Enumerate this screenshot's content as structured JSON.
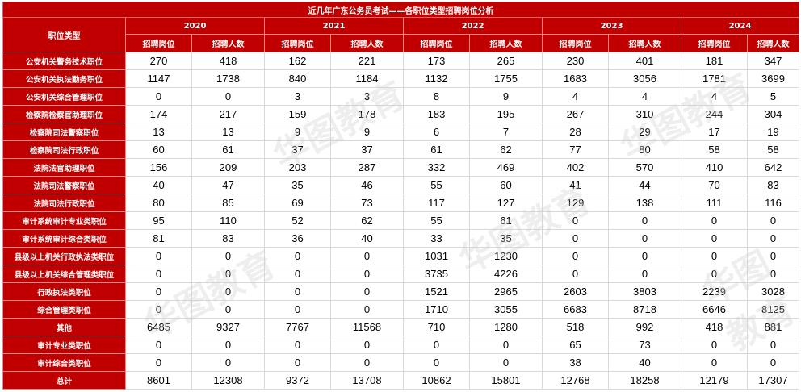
{
  "title": "近几年广东公务员考试——各职位类型招聘岗位分析",
  "header": {
    "position_type": "职位类型",
    "years": [
      "2020",
      "2021",
      "2022",
      "2023",
      "2024"
    ],
    "sub": [
      "招聘岗位",
      "招聘人数"
    ]
  },
  "rows": [
    {
      "label": "公安机关警务技术职位",
      "values": [
        270,
        418,
        162,
        221,
        173,
        265,
        230,
        401,
        181,
        347
      ]
    },
    {
      "label": "公安机关执法勤务职位",
      "values": [
        1147,
        1738,
        840,
        1184,
        1132,
        1755,
        1683,
        3056,
        1781,
        3699
      ]
    },
    {
      "label": "公安机关综合管理职位",
      "values": [
        0,
        0,
        3,
        3,
        8,
        9,
        4,
        4,
        4,
        5
      ]
    },
    {
      "label": "检察院检察官助理职位",
      "values": [
        174,
        217,
        159,
        178,
        183,
        195,
        267,
        310,
        244,
        304
      ]
    },
    {
      "label": "检察院司法警察职位",
      "values": [
        13,
        13,
        9,
        9,
        6,
        7,
        28,
        29,
        17,
        19
      ]
    },
    {
      "label": "检察院司法行政职位",
      "values": [
        60,
        61,
        37,
        37,
        61,
        62,
        77,
        80,
        58,
        58
      ]
    },
    {
      "label": "法院法官助理职位",
      "values": [
        156,
        209,
        203,
        287,
        332,
        469,
        402,
        570,
        410,
        642
      ]
    },
    {
      "label": "法院司法警察职位",
      "values": [
        40,
        47,
        35,
        46,
        55,
        60,
        41,
        44,
        70,
        83
      ]
    },
    {
      "label": "法院司法行政职位",
      "values": [
        80,
        85,
        69,
        73,
        117,
        127,
        129,
        138,
        111,
        116
      ]
    },
    {
      "label": "审计系统审计专业类职位",
      "values": [
        95,
        110,
        52,
        62,
        55,
        61,
        0,
        0,
        0,
        0
      ]
    },
    {
      "label": "审计系统审计综合类职位",
      "values": [
        81,
        83,
        36,
        40,
        33,
        35,
        0,
        0,
        0,
        0
      ]
    },
    {
      "label": "县级以上机关行政执法类职位",
      "values": [
        0,
        0,
        0,
        0,
        1031,
        1230,
        0,
        0,
        0,
        0
      ]
    },
    {
      "label": "县级以上机关综合管理类职位",
      "values": [
        0,
        0,
        0,
        0,
        3735,
        4226,
        0,
        0,
        0,
        0
      ]
    },
    {
      "label": "行政执法类职位",
      "values": [
        0,
        0,
        0,
        0,
        1521,
        2965,
        2603,
        3803,
        2239,
        3028
      ]
    },
    {
      "label": "综合管理类职位",
      "values": [
        0,
        0,
        0,
        0,
        1710,
        3055,
        6683,
        8718,
        6646,
        8125
      ]
    },
    {
      "label": "其他",
      "values": [
        6485,
        9327,
        7767,
        11568,
        710,
        1280,
        518,
        992,
        418,
        881
      ]
    },
    {
      "label": "审计专业类职位",
      "values": [
        0,
        0,
        0,
        0,
        0,
        0,
        65,
        73,
        0,
        0
      ]
    },
    {
      "label": "审计综合类职位",
      "values": [
        0,
        0,
        0,
        0,
        0,
        0,
        38,
        40,
        0,
        0
      ]
    },
    {
      "label": "总计",
      "values": [
        8601,
        12308,
        9372,
        13708,
        10862,
        15801,
        12768,
        18258,
        12179,
        17307
      ]
    }
  ],
  "watermark": "华图教育"
}
